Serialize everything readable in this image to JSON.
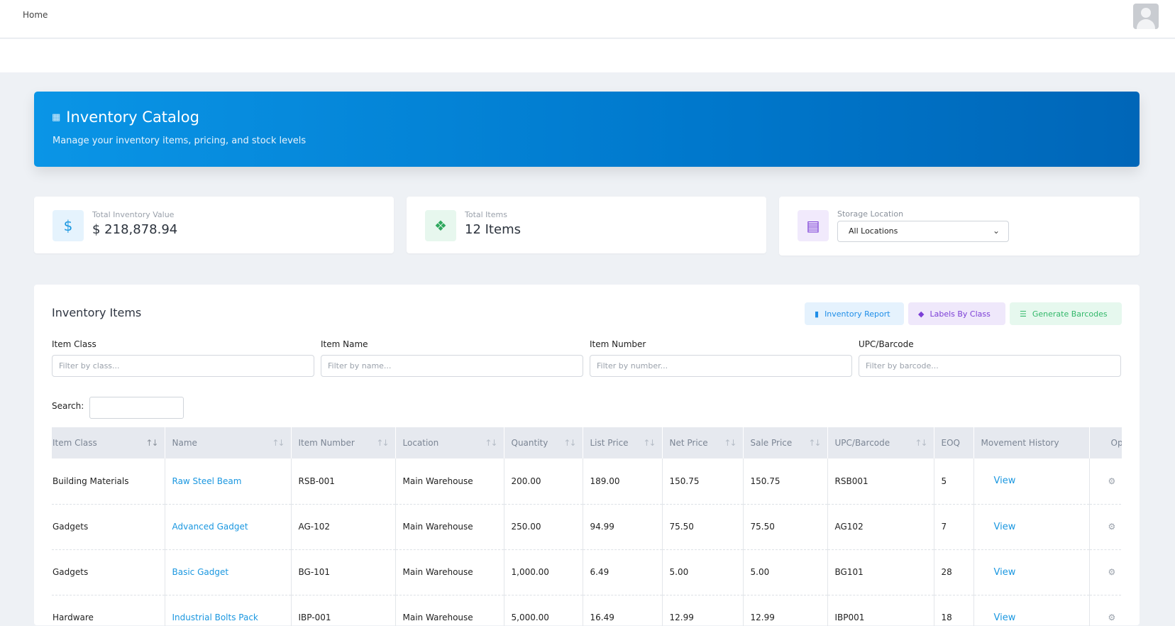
{
  "nav": {
    "home_label": "Home"
  },
  "hero": {
    "icon": "boxes-icon",
    "title": "Inventory Catalog",
    "subtitle": "Manage your inventory items, pricing, and stock levels",
    "gradient_start": "#0a95e6",
    "gradient_end": "#0066b8"
  },
  "stats": {
    "total_value": {
      "label": "Total Inventory Value",
      "value": "$ 218,878.94",
      "icon": "dollar-icon",
      "color": "#1a97e0"
    },
    "total_items": {
      "label": "Total Items",
      "value": "12 Items",
      "icon": "cubes-icon",
      "color": "#2fa85e"
    },
    "storage": {
      "label": "Storage Location",
      "selected": "All Locations",
      "icon": "warehouse-icon",
      "color": "#7c3fd6"
    }
  },
  "items_card": {
    "title": "Inventory Items",
    "buttons": {
      "report": "Inventory Report",
      "labels": "Labels By Class",
      "barcodes": "Generate Barcodes"
    },
    "filters": [
      {
        "label": "Item Class",
        "placeholder": "Filter by class..."
      },
      {
        "label": "Item Name",
        "placeholder": "Filter by name..."
      },
      {
        "label": "Item Number",
        "placeholder": "Filter by number..."
      },
      {
        "label": "UPC/Barcode",
        "placeholder": "Filter by barcode..."
      }
    ],
    "search_label": "Search:",
    "columns": [
      "Item Class",
      "Name",
      "Item Number",
      "Location",
      "Quantity",
      "List Price",
      "Net Price",
      "Sale Price",
      "UPC/Barcode",
      "EOQ",
      "Movement History",
      "Opti"
    ],
    "view_label": "View",
    "rows": [
      {
        "item_class": "Building Materials",
        "name": "Raw Steel Beam",
        "item_number": "RSB-001",
        "location": "Main Warehouse",
        "quantity": "200.00",
        "list_price": "189.00",
        "net_price": "150.75",
        "sale_price": "150.75",
        "upc": "RSB001",
        "eoq": "5"
      },
      {
        "item_class": "Gadgets",
        "name": "Advanced Gadget",
        "item_number": "AG-102",
        "location": "Main Warehouse",
        "quantity": "250.00",
        "list_price": "94.99",
        "net_price": "75.50",
        "sale_price": "75.50",
        "upc": "AG102",
        "eoq": "7"
      },
      {
        "item_class": "Gadgets",
        "name": "Basic Gadget",
        "item_number": "BG-101",
        "location": "Main Warehouse",
        "quantity": "1,000.00",
        "list_price": "6.49",
        "net_price": "5.00",
        "sale_price": "5.00",
        "upc": "BG101",
        "eoq": "28"
      },
      {
        "item_class": "Hardware",
        "name": "Industrial Bolts Pack",
        "item_number": "IBP-001",
        "location": "Main Warehouse",
        "quantity": "5,000.00",
        "list_price": "16.49",
        "net_price": "12.99",
        "sale_price": "12.99",
        "upc": "IBP001",
        "eoq": "18"
      }
    ]
  }
}
